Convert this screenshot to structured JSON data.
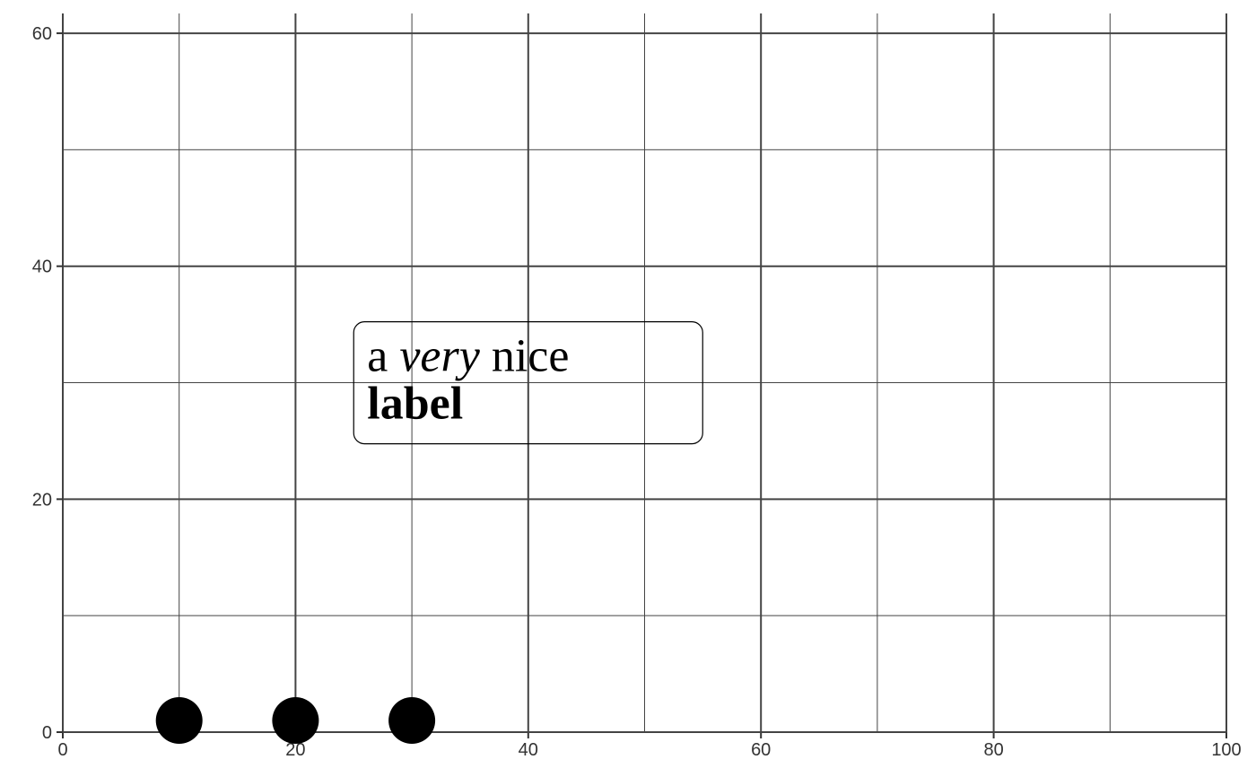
{
  "chart_data": {
    "type": "scatter",
    "x": [
      10,
      20,
      30
    ],
    "values": [
      1,
      1,
      1
    ],
    "color": "#000000",
    "xlim": [
      0,
      100
    ],
    "ylim": [
      0,
      61.7
    ],
    "xticks": [
      0,
      20,
      40,
      60,
      80,
      100
    ],
    "yticks": [
      0,
      20,
      40,
      60
    ],
    "grid": true,
    "annotation": {
      "x": 25,
      "y": 35,
      "lines": [
        [
          {
            "text": "a",
            "style": "normal"
          },
          {
            "text": "very",
            "style": "italic"
          },
          {
            "text": "nice",
            "style": "normal"
          }
        ],
        [
          {
            "text": "label",
            "style": "bold"
          }
        ]
      ]
    }
  }
}
